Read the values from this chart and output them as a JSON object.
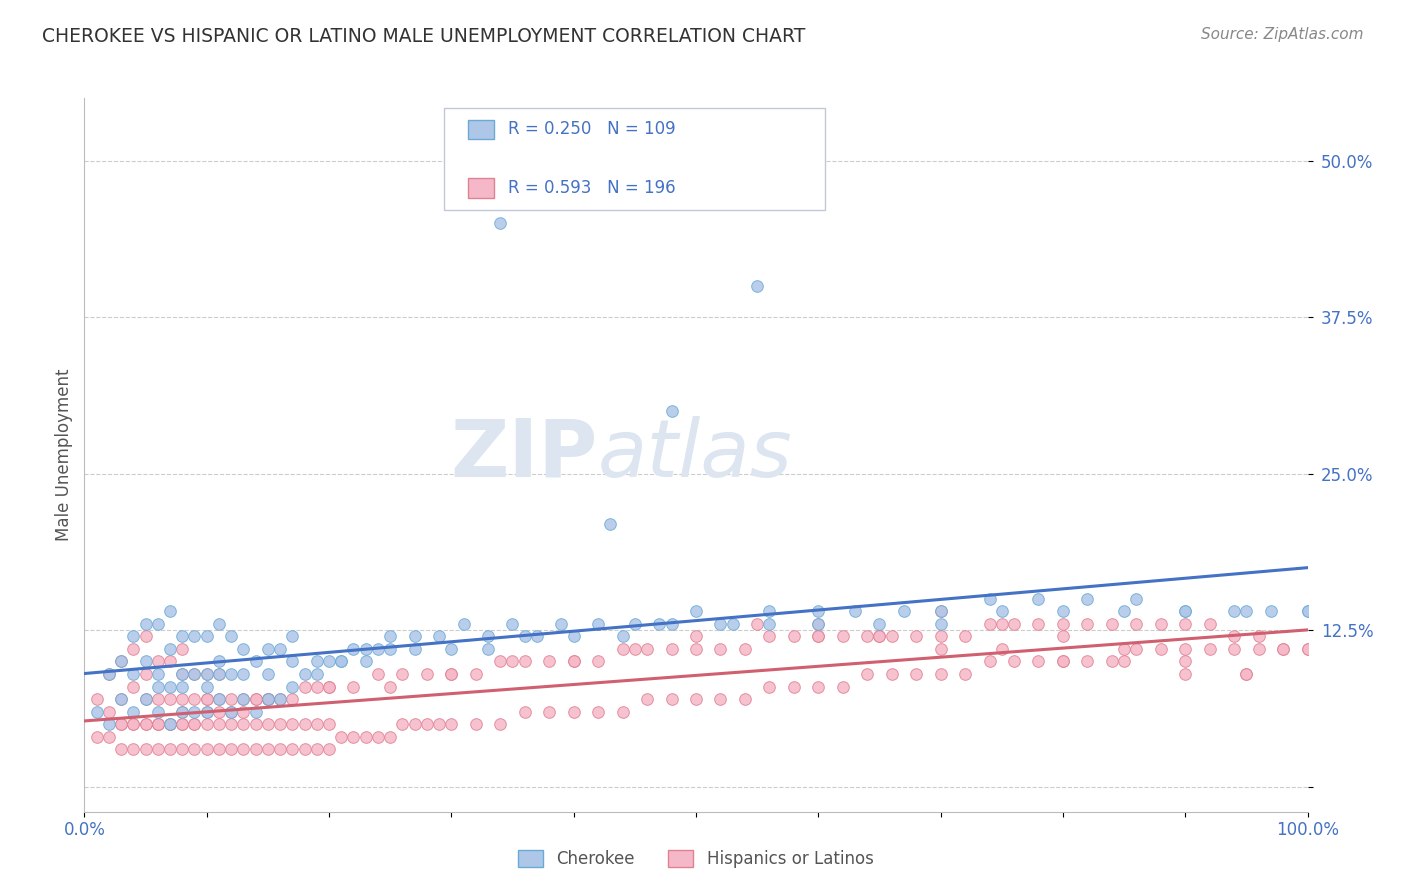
{
  "title": "CHEROKEE VS HISPANIC OR LATINO MALE UNEMPLOYMENT CORRELATION CHART",
  "source": "Source: ZipAtlas.com",
  "ylabel": "Male Unemployment",
  "xlim": [
    0.0,
    1.0
  ],
  "ylim": [
    -0.02,
    0.55
  ],
  "yticks": [
    0.0,
    0.125,
    0.25,
    0.375,
    0.5
  ],
  "ytick_labels": [
    "",
    "12.5%",
    "25.0%",
    "37.5%",
    "50.0%"
  ],
  "cherokee_color": "#aec6e8",
  "cherokee_edge": "#6aaad4",
  "hispanic_color": "#f5b8c8",
  "hispanic_edge": "#e08090",
  "line_cherokee": "#4472c4",
  "line_hispanic": "#d06070",
  "watermark_color": "#dde6f0",
  "background_color": "#ffffff",
  "grid_color": "#cccccc",
  "title_color": "#333333",
  "axis_label_color": "#555555",
  "tick_label_color": "#4472c4",
  "legend_r_color": "#4472c4",
  "legend_n_color": "#4472c4",
  "cherokee_scatter_x": [
    0.01,
    0.02,
    0.02,
    0.03,
    0.03,
    0.04,
    0.04,
    0.04,
    0.05,
    0.05,
    0.05,
    0.06,
    0.06,
    0.06,
    0.07,
    0.07,
    0.07,
    0.07,
    0.08,
    0.08,
    0.08,
    0.09,
    0.09,
    0.09,
    0.1,
    0.1,
    0.1,
    0.11,
    0.11,
    0.11,
    0.12,
    0.12,
    0.12,
    0.13,
    0.13,
    0.14,
    0.14,
    0.15,
    0.15,
    0.16,
    0.16,
    0.17,
    0.17,
    0.18,
    0.19,
    0.2,
    0.21,
    0.22,
    0.23,
    0.24,
    0.25,
    0.27,
    0.29,
    0.31,
    0.33,
    0.35,
    0.37,
    0.39,
    0.42,
    0.45,
    0.47,
    0.5,
    0.53,
    0.56,
    0.6,
    0.63,
    0.67,
    0.7,
    0.74,
    0.78,
    0.82,
    0.86,
    0.9,
    0.94,
    0.97,
    1.0,
    0.34,
    0.55,
    0.43,
    0.48,
    0.06,
    0.08,
    0.1,
    0.11,
    0.13,
    0.15,
    0.17,
    0.19,
    0.21,
    0.23,
    0.25,
    0.27,
    0.3,
    0.33,
    0.36,
    0.4,
    0.44,
    0.48,
    0.52,
    0.56,
    0.6,
    0.65,
    0.7,
    0.75,
    0.8,
    0.85,
    0.9,
    0.95,
    1.0
  ],
  "cherokee_scatter_y": [
    0.06,
    0.05,
    0.09,
    0.07,
    0.1,
    0.06,
    0.09,
    0.12,
    0.07,
    0.1,
    0.13,
    0.06,
    0.09,
    0.13,
    0.05,
    0.08,
    0.11,
    0.14,
    0.06,
    0.09,
    0.12,
    0.06,
    0.09,
    0.12,
    0.06,
    0.09,
    0.12,
    0.07,
    0.1,
    0.13,
    0.06,
    0.09,
    0.12,
    0.07,
    0.11,
    0.06,
    0.1,
    0.07,
    0.11,
    0.07,
    0.11,
    0.08,
    0.12,
    0.09,
    0.09,
    0.1,
    0.1,
    0.11,
    0.11,
    0.11,
    0.12,
    0.12,
    0.12,
    0.13,
    0.12,
    0.13,
    0.12,
    0.13,
    0.13,
    0.13,
    0.13,
    0.14,
    0.13,
    0.14,
    0.14,
    0.14,
    0.14,
    0.14,
    0.15,
    0.15,
    0.15,
    0.15,
    0.14,
    0.14,
    0.14,
    0.14,
    0.45,
    0.4,
    0.21,
    0.3,
    0.08,
    0.08,
    0.08,
    0.09,
    0.09,
    0.09,
    0.1,
    0.1,
    0.1,
    0.1,
    0.11,
    0.11,
    0.11,
    0.11,
    0.12,
    0.12,
    0.12,
    0.13,
    0.13,
    0.13,
    0.13,
    0.13,
    0.13,
    0.14,
    0.14,
    0.14,
    0.14,
    0.14,
    0.14
  ],
  "hispanic_scatter_x": [
    0.01,
    0.01,
    0.02,
    0.02,
    0.02,
    0.03,
    0.03,
    0.03,
    0.03,
    0.04,
    0.04,
    0.04,
    0.04,
    0.05,
    0.05,
    0.05,
    0.05,
    0.05,
    0.06,
    0.06,
    0.06,
    0.06,
    0.07,
    0.07,
    0.07,
    0.07,
    0.08,
    0.08,
    0.08,
    0.08,
    0.08,
    0.09,
    0.09,
    0.09,
    0.09,
    0.1,
    0.1,
    0.1,
    0.1,
    0.11,
    0.11,
    0.11,
    0.11,
    0.12,
    0.12,
    0.12,
    0.13,
    0.13,
    0.13,
    0.14,
    0.14,
    0.14,
    0.15,
    0.15,
    0.15,
    0.16,
    0.16,
    0.17,
    0.17,
    0.18,
    0.18,
    0.19,
    0.19,
    0.2,
    0.2,
    0.21,
    0.22,
    0.23,
    0.24,
    0.25,
    0.26,
    0.27,
    0.28,
    0.29,
    0.3,
    0.32,
    0.34,
    0.36,
    0.38,
    0.4,
    0.42,
    0.44,
    0.46,
    0.48,
    0.5,
    0.52,
    0.54,
    0.56,
    0.58,
    0.6,
    0.62,
    0.64,
    0.66,
    0.68,
    0.7,
    0.72,
    0.74,
    0.76,
    0.78,
    0.8,
    0.82,
    0.84,
    0.86,
    0.88,
    0.9,
    0.92,
    0.94,
    0.96,
    0.98,
    1.0,
    0.03,
    0.04,
    0.05,
    0.06,
    0.07,
    0.08,
    0.09,
    0.1,
    0.11,
    0.12,
    0.13,
    0.14,
    0.15,
    0.16,
    0.17,
    0.18,
    0.19,
    0.2,
    0.22,
    0.24,
    0.26,
    0.28,
    0.3,
    0.32,
    0.34,
    0.36,
    0.38,
    0.4,
    0.42,
    0.44,
    0.46,
    0.48,
    0.5,
    0.52,
    0.54,
    0.56,
    0.58,
    0.6,
    0.62,
    0.64,
    0.66,
    0.68,
    0.7,
    0.72,
    0.74,
    0.76,
    0.78,
    0.8,
    0.82,
    0.84,
    0.86,
    0.88,
    0.9,
    0.92,
    0.94,
    0.96,
    0.98,
    1.0,
    0.55,
    0.6,
    0.65,
    0.7,
    0.75,
    0.8,
    0.85,
    0.9,
    0.95,
    0.5,
    0.45,
    0.4,
    0.35,
    0.3,
    0.25,
    0.2,
    0.15,
    0.1,
    0.08,
    0.06,
    0.7,
    0.75,
    0.8,
    0.85,
    0.9,
    0.95,
    0.6,
    0.65
  ],
  "hispanic_scatter_y": [
    0.04,
    0.07,
    0.04,
    0.06,
    0.09,
    0.03,
    0.05,
    0.07,
    0.1,
    0.03,
    0.05,
    0.08,
    0.11,
    0.03,
    0.05,
    0.07,
    0.09,
    0.12,
    0.03,
    0.05,
    0.07,
    0.1,
    0.03,
    0.05,
    0.07,
    0.1,
    0.03,
    0.05,
    0.07,
    0.09,
    0.11,
    0.03,
    0.05,
    0.07,
    0.09,
    0.03,
    0.05,
    0.07,
    0.09,
    0.03,
    0.05,
    0.07,
    0.09,
    0.03,
    0.05,
    0.07,
    0.03,
    0.05,
    0.07,
    0.03,
    0.05,
    0.07,
    0.03,
    0.05,
    0.07,
    0.03,
    0.05,
    0.03,
    0.05,
    0.03,
    0.05,
    0.03,
    0.05,
    0.03,
    0.05,
    0.04,
    0.04,
    0.04,
    0.04,
    0.04,
    0.05,
    0.05,
    0.05,
    0.05,
    0.05,
    0.05,
    0.05,
    0.06,
    0.06,
    0.06,
    0.06,
    0.06,
    0.07,
    0.07,
    0.07,
    0.07,
    0.07,
    0.08,
    0.08,
    0.08,
    0.08,
    0.09,
    0.09,
    0.09,
    0.09,
    0.09,
    0.1,
    0.1,
    0.1,
    0.1,
    0.1,
    0.1,
    0.11,
    0.11,
    0.11,
    0.11,
    0.11,
    0.11,
    0.11,
    0.11,
    0.05,
    0.05,
    0.05,
    0.05,
    0.05,
    0.05,
    0.05,
    0.06,
    0.06,
    0.06,
    0.06,
    0.07,
    0.07,
    0.07,
    0.07,
    0.08,
    0.08,
    0.08,
    0.08,
    0.09,
    0.09,
    0.09,
    0.09,
    0.09,
    0.1,
    0.1,
    0.1,
    0.1,
    0.1,
    0.11,
    0.11,
    0.11,
    0.11,
    0.11,
    0.11,
    0.12,
    0.12,
    0.12,
    0.12,
    0.12,
    0.12,
    0.12,
    0.12,
    0.12,
    0.13,
    0.13,
    0.13,
    0.13,
    0.13,
    0.13,
    0.13,
    0.13,
    0.13,
    0.13,
    0.12,
    0.12,
    0.11,
    0.11,
    0.13,
    0.12,
    0.12,
    0.11,
    0.11,
    0.1,
    0.1,
    0.09,
    0.09,
    0.12,
    0.11,
    0.1,
    0.1,
    0.09,
    0.08,
    0.08,
    0.07,
    0.07,
    0.06,
    0.05,
    0.14,
    0.13,
    0.12,
    0.11,
    0.1,
    0.09,
    0.13,
    0.12
  ]
}
